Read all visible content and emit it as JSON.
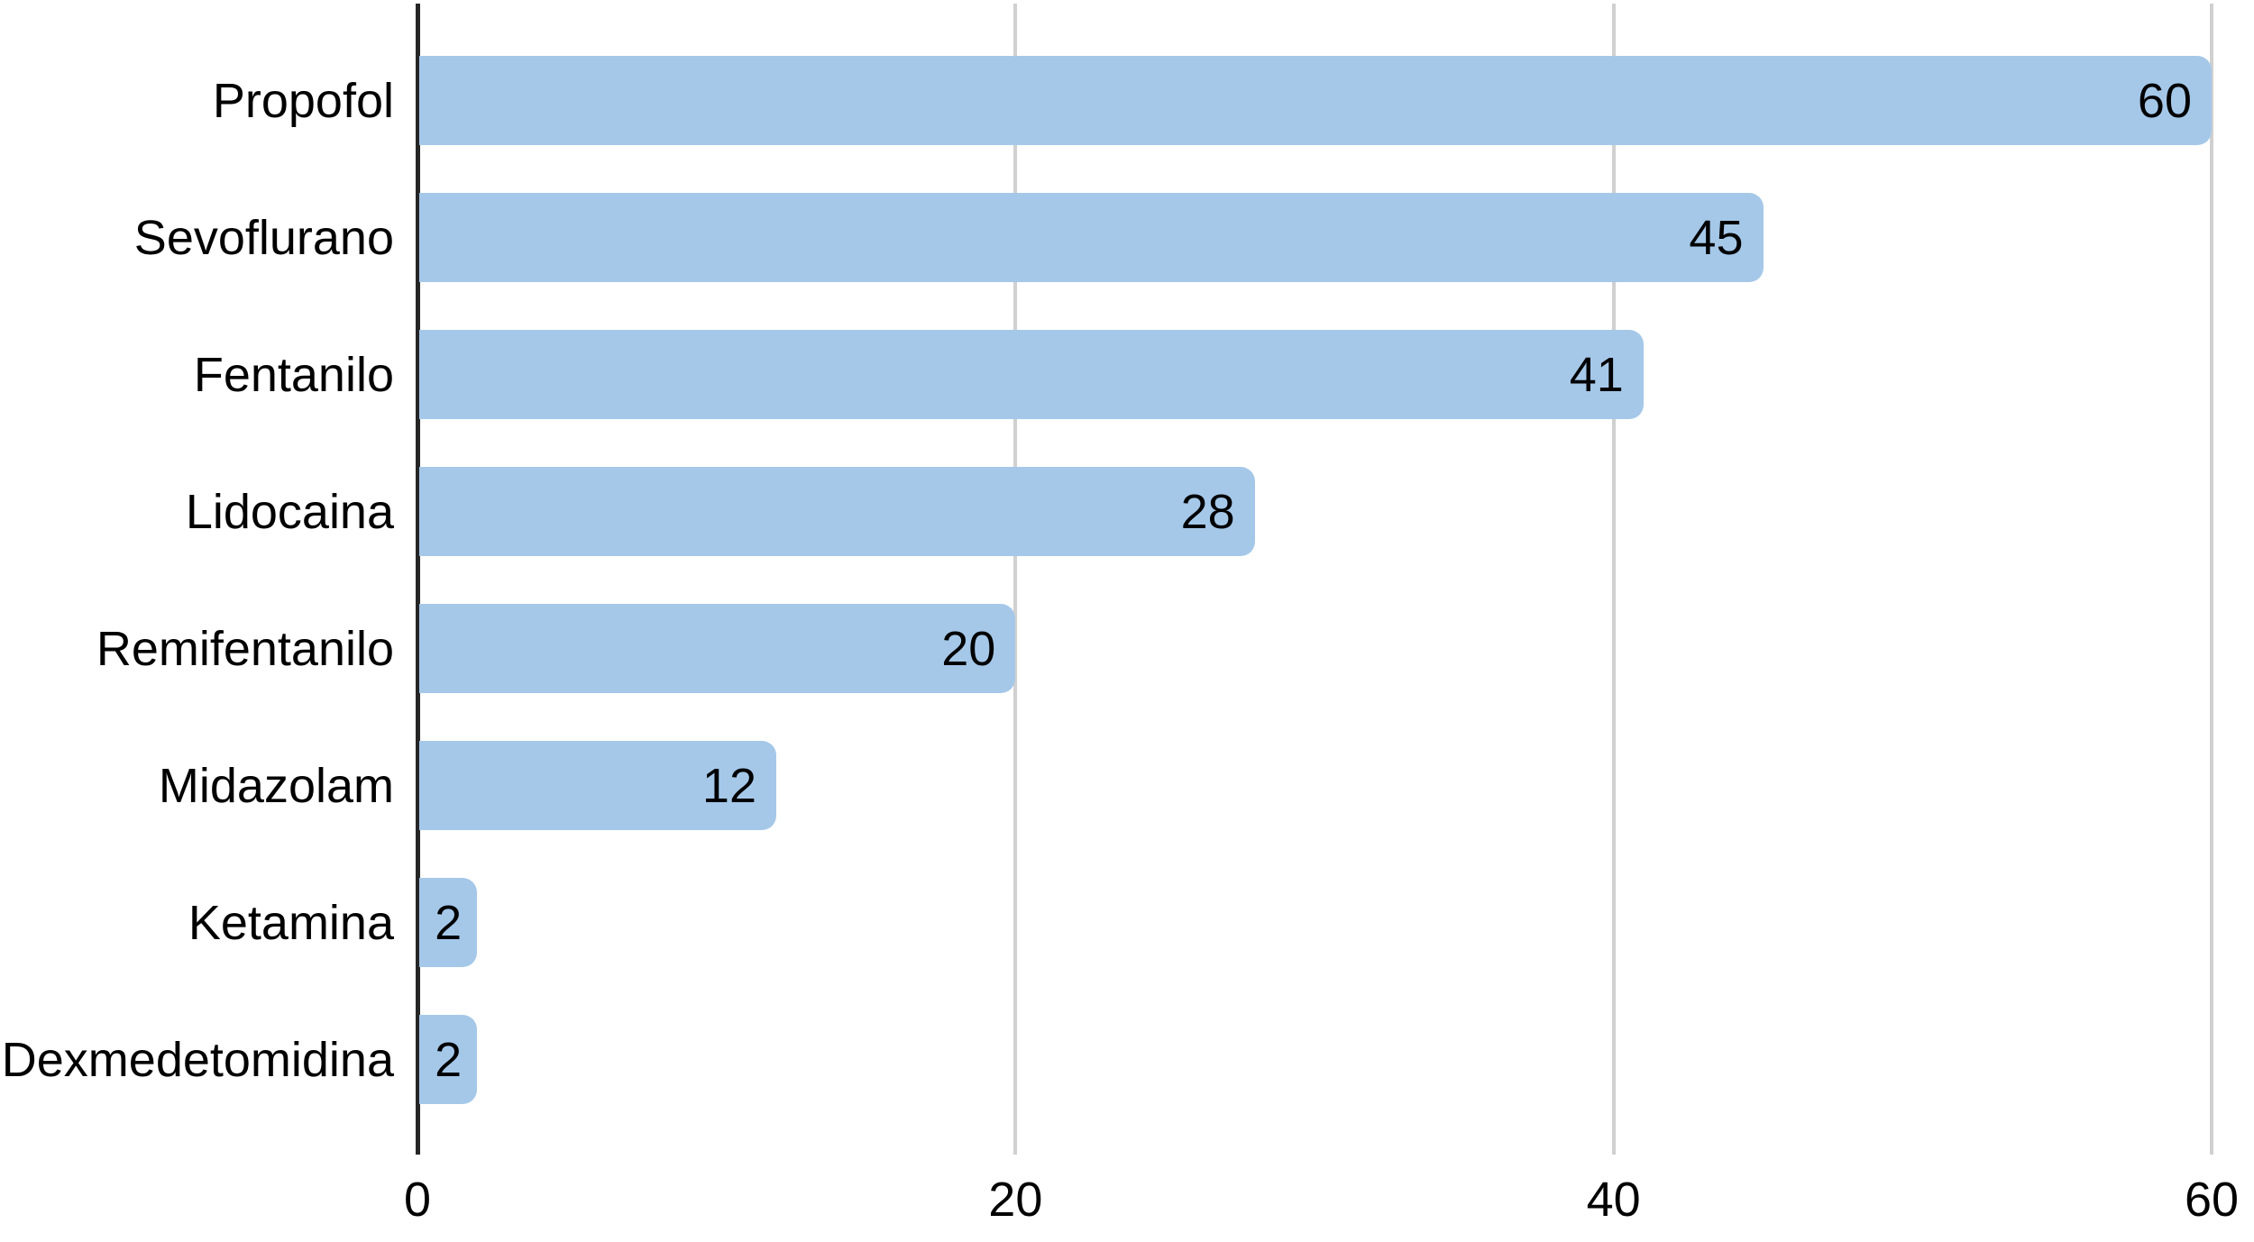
{
  "chart_data": {
    "type": "bar",
    "orientation": "horizontal",
    "title": "",
    "xlabel": "",
    "ylabel": "",
    "categories": [
      "Propofol",
      "Sevoflurano",
      "Fentanilo",
      "Lidocaina",
      "Remifentanilo",
      "Midazolam",
      "Ketamina",
      "Dexmedetomidina"
    ],
    "values": [
      60,
      45,
      41,
      28,
      20,
      12,
      2,
      2
    ],
    "xticks": [
      0,
      20,
      40,
      60
    ],
    "xlim": [
      0,
      61.5
    ],
    "grid": true,
    "legend_position": "none",
    "value_label_position": "inside-end",
    "colors": {
      "bar": "#A5C8E9",
      "axis_line": "#262626",
      "gridline": "#D0D0D0",
      "text": "#000000",
      "background": "#FFFFFF"
    }
  }
}
